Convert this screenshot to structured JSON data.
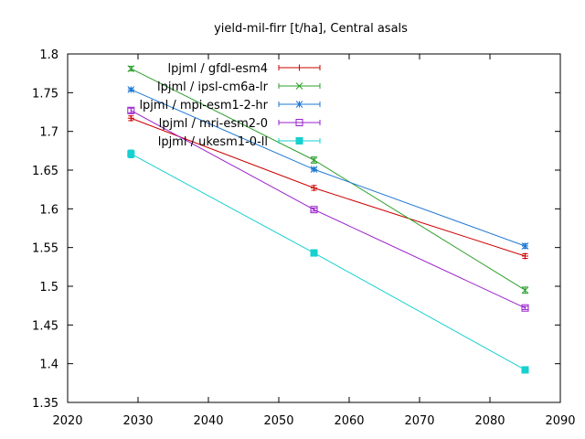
{
  "chart_data": {
    "type": "line",
    "title": "yield-mil-firr [t/ha], Central asals",
    "xlabel": "",
    "ylabel": "",
    "xlim": [
      2020,
      2090
    ],
    "ylim": [
      1.35,
      1.8
    ],
    "xticks": [
      "2020",
      "2030",
      "2040",
      "2050",
      "2060",
      "2070",
      "2080",
      "2090"
    ],
    "yticks": [
      "1.35",
      "1.4",
      "1.45",
      "1.5",
      "1.55",
      "1.6",
      "1.65",
      "1.7",
      "1.75",
      "1.8"
    ],
    "grid": false,
    "legend_position": "top-left",
    "x": [
      2029,
      2055,
      2085
    ],
    "series": [
      {
        "name": "lpjml / gfdl-esm4",
        "color": "#cc0000",
        "marker": "plus",
        "values": [
          1.717,
          1.627,
          1.539
        ],
        "errors": [
          0.003,
          0.003,
          0.003
        ]
      },
      {
        "name": "lpjml / ipsl-cm6a-lr",
        "color": "#2ca02c",
        "marker": "cross",
        "values": [
          1.781,
          1.663,
          1.495
        ],
        "errors": [
          0.003,
          0.004,
          0.004
        ]
      },
      {
        "name": "lpjml / mpi-esm1-2-hr",
        "color": "#1f78d4",
        "marker": "star",
        "values": [
          1.754,
          1.651,
          1.552
        ],
        "errors": [
          0.002,
          0.002,
          0.003
        ]
      },
      {
        "name": "lpjml / mri-esm2-0",
        "color": "#9a1fcc",
        "marker": "box",
        "values": [
          1.727,
          1.599,
          1.472
        ],
        "errors": [
          0.003,
          0.002,
          0.002
        ]
      },
      {
        "name": "lpjml / ukesm1-0-ll",
        "color": "#17d0d0",
        "marker": "filledbox",
        "values": [
          1.671,
          1.543,
          1.392
        ],
        "errors": [
          0.005,
          0.004,
          0.003
        ]
      }
    ]
  }
}
